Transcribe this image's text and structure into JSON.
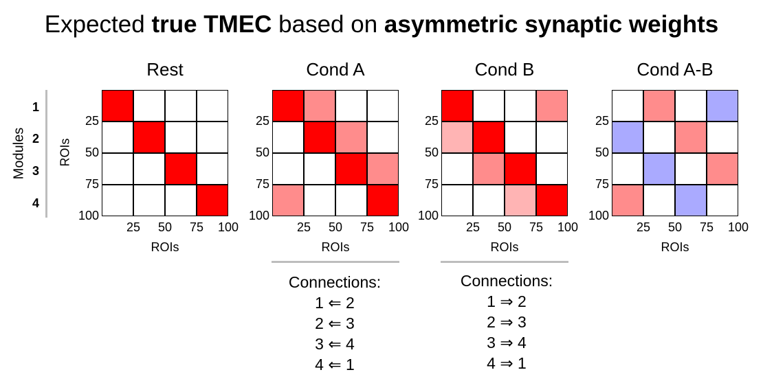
{
  "title": {
    "part1": "Expected ",
    "bold1": "true TMEC",
    "part2": " based on ",
    "bold2": "asymmetric synaptic weights"
  },
  "modules_label": "Modules",
  "module_numbers": [
    "1",
    "2",
    "3",
    "4"
  ],
  "y_axis_label": "ROIs",
  "x_axis_label": "ROIs",
  "y_ticks": [
    "25",
    "50",
    "75",
    "100"
  ],
  "x_ticks": [
    "25",
    "50",
    "75",
    "100"
  ],
  "colors": {
    "strong_red": "#ff0000",
    "medium_red": "#ff8c8c",
    "light_red": "#ffb4b4",
    "blue": "#aaaaff",
    "white": "#ffffff"
  },
  "matrices": [
    {
      "title": "Rest",
      "cells": [
        [
          "strong_red",
          "white",
          "white",
          "white"
        ],
        [
          "white",
          "strong_red",
          "white",
          "white"
        ],
        [
          "white",
          "white",
          "strong_red",
          "white"
        ],
        [
          "white",
          "white",
          "white",
          "strong_red"
        ]
      ]
    },
    {
      "title": "Cond A",
      "cells": [
        [
          "strong_red",
          "medium_red",
          "white",
          "white"
        ],
        [
          "white",
          "strong_red",
          "medium_red",
          "white"
        ],
        [
          "white",
          "white",
          "strong_red",
          "medium_red"
        ],
        [
          "medium_red",
          "white",
          "white",
          "strong_red"
        ]
      ]
    },
    {
      "title": "Cond B",
      "cells": [
        [
          "strong_red",
          "white",
          "white",
          "medium_red"
        ],
        [
          "light_red",
          "strong_red",
          "white",
          "white"
        ],
        [
          "white",
          "medium_red",
          "strong_red",
          "white"
        ],
        [
          "white",
          "white",
          "light_red",
          "strong_red"
        ]
      ]
    },
    {
      "title": "Cond A-B",
      "cells": [
        [
          "white",
          "medium_red",
          "white",
          "blue"
        ],
        [
          "blue",
          "white",
          "medium_red",
          "white"
        ],
        [
          "white",
          "blue",
          "white",
          "medium_red"
        ],
        [
          "medium_red",
          "white",
          "blue",
          "white"
        ]
      ]
    }
  ],
  "connections": [
    {
      "header": "Connections:",
      "lines": [
        "1 ⇐ 2",
        "2 ⇐ 3",
        "3 ⇐ 4",
        "4 ⇐ 1"
      ]
    },
    {
      "header": "Connections:",
      "lines": [
        "1 ⇒ 2",
        "2 ⇒ 3",
        "3 ⇒ 4",
        "4 ⇒ 1"
      ]
    }
  ]
}
